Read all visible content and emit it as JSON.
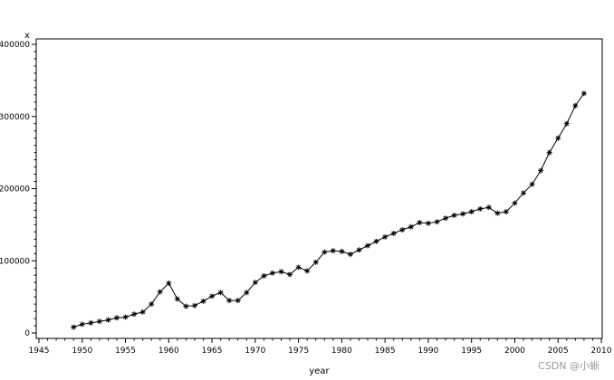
{
  "chart_data": {
    "type": "line",
    "title": "",
    "xlabel": "year",
    "ylabel": "x",
    "xlim": [
      1945,
      2010
    ],
    "ylim": [
      0,
      400000
    ],
    "x_ticks": [
      "1945",
      "1950",
      "1955",
      "1960",
      "1965",
      "1970",
      "1975",
      "1980",
      "1985",
      "1990",
      "1995",
      "2000",
      "2005",
      "2010"
    ],
    "y_ticks": [
      "0",
      "100000",
      "200000",
      "300000",
      "400000"
    ],
    "grid": false,
    "legend": "none",
    "marker": "star",
    "line_color": "#000000",
    "series": [
      {
        "x": [
          1949,
          1950,
          1951,
          1952,
          1953,
          1954,
          1955,
          1956,
          1957,
          1958,
          1959,
          1960,
          1961,
          1962,
          1963,
          1964,
          1965,
          1966,
          1967,
          1968,
          1969,
          1970,
          1971,
          1972,
          1973,
          1974,
          1975,
          1976,
          1977,
          1978,
          1979,
          1980,
          1981,
          1982,
          1983,
          1984,
          1985,
          1986,
          1987,
          1988,
          1989,
          1990,
          1991,
          1992,
          1993,
          1994,
          1995,
          1996,
          1997,
          1998,
          1999,
          2000,
          2001,
          2002,
          2003,
          2004,
          2005,
          2006,
          2007,
          2008
        ],
        "y": [
          8000,
          12000,
          14000,
          16000,
          18000,
          21000,
          22000,
          26000,
          29000,
          40000,
          57000,
          69000,
          47000,
          37000,
          38000,
          44000,
          51000,
          56000,
          45000,
          45000,
          56000,
          70000,
          79000,
          83000,
          85000,
          81000,
          91000,
          86000,
          98000,
          112000,
          114000,
          113000,
          109000,
          115000,
          121000,
          127000,
          133000,
          138000,
          143000,
          147000,
          153000,
          152000,
          154000,
          159000,
          163000,
          165000,
          168000,
          172000,
          174000,
          166000,
          168000,
          180000,
          194000,
          206000,
          225000,
          250000,
          270000,
          290000,
          315000,
          332000
        ]
      }
    ]
  },
  "watermark": "CSDN @小蜥"
}
